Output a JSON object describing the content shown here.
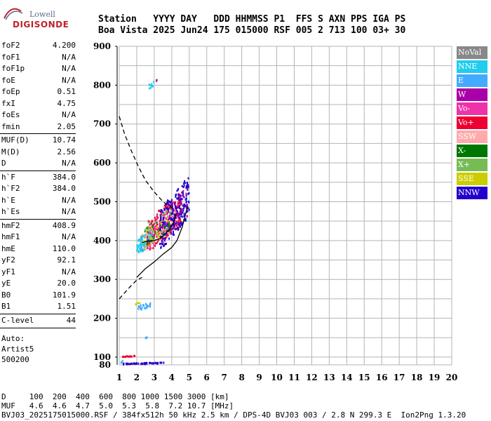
{
  "logo": {
    "top": "Lowell",
    "bottom": "DIGISONDE"
  },
  "header": {
    "line1": "Station   YYYY DAY   DDD HHMMSS P1  FFS S AXN PPS IGA PS",
    "line2": "Boa Vista 2025 Jun24 175 015000 RSF 005 2 713 100 03+ 30"
  },
  "params": [
    {
      "label": "foF2",
      "value": "4.200"
    },
    {
      "label": "foF1",
      "value": "N/A"
    },
    {
      "label": "foF1p",
      "value": "N/A"
    },
    {
      "label": "foE",
      "value": "N/A"
    },
    {
      "label": "foEp",
      "value": "0.51"
    },
    {
      "label": "fxI",
      "value": "4.75"
    },
    {
      "label": "foEs",
      "value": "N/A"
    },
    {
      "label": "fmin",
      "value": "2.05"
    },
    {
      "label": "MUF(D)",
      "value": "10.74"
    },
    {
      "label": "M(D)",
      "value": "2.56"
    },
    {
      "label": "D",
      "value": "N/A"
    },
    {
      "label": "h`F",
      "value": "384.0"
    },
    {
      "label": "h`F2",
      "value": "384.0"
    },
    {
      "label": "h`E",
      "value": "N/A"
    },
    {
      "label": "h`Es",
      "value": "N/A"
    },
    {
      "label": "hmF2",
      "value": "408.9"
    },
    {
      "label": "hmF1",
      "value": "N/A"
    },
    {
      "label": "hmE",
      "value": "110.0"
    },
    {
      "label": "yF2",
      "value": "92.1"
    },
    {
      "label": "yF1",
      "value": "N/A"
    },
    {
      "label": "yE",
      "value": "20.0"
    },
    {
      "label": "B0",
      "value": "101.9"
    },
    {
      "label": "B1",
      "value": "1.51"
    },
    {
      "label": "C-level",
      "value": "44"
    }
  ],
  "auto": {
    "line1": "Auto:",
    "line2": "Artist5",
    "line3": "500200"
  },
  "legend": [
    {
      "label": "NoVal",
      "color": "#888888"
    },
    {
      "label": "NNE",
      "color": "#22ccee"
    },
    {
      "label": "E",
      "color": "#44aaff"
    },
    {
      "label": "W",
      "color": "#aa00aa"
    },
    {
      "label": "Vo-",
      "color": "#ee33aa"
    },
    {
      "label": "Vo+",
      "color": "#ee0033"
    },
    {
      "label": "SSW",
      "color": "#ffaaaa"
    },
    {
      "label": "X-",
      "color": "#007700"
    },
    {
      "label": "X+",
      "color": "#77bb55"
    },
    {
      "label": "SSE",
      "color": "#cccc00"
    },
    {
      "label": "NNW",
      "color": "#2200cc"
    }
  ],
  "footer": {
    "line1": "D     100  200  400  600  800 1000 1500 3000 [km]",
    "line2": "MUF   4.6  4.6  4.7  5.0  5.3  5.8  7.2 10.7 [MHz]",
    "line3": "BVJ03_2025175015000.RSF / 384fx512h 50 kHz 2.5 km / DPS-4D BVJ03 003 / 2.8 N 299.3 E  Ion2Png 1.3.20"
  },
  "chart_data": {
    "type": "scatter",
    "xlim": [
      1,
      20
    ],
    "ylim": [
      80,
      900
    ],
    "xticks": [
      1,
      2,
      3,
      4,
      5,
      6,
      7,
      8,
      9,
      10,
      11,
      12,
      13,
      14,
      15,
      16,
      17,
      18,
      19,
      20
    ],
    "yticks": [
      100,
      200,
      300,
      400,
      500,
      600,
      700,
      800,
      900
    ],
    "profile_solid": [
      [
        2.3,
        395
      ],
      [
        2.6,
        398
      ],
      [
        3.0,
        400
      ],
      [
        3.3,
        405
      ],
      [
        3.6,
        415
      ],
      [
        3.9,
        430
      ],
      [
        4.1,
        445
      ],
      [
        4.2,
        460
      ],
      [
        4.25,
        470
      ]
    ],
    "profile_lower": [
      [
        2.0,
        305
      ],
      [
        2.5,
        328
      ],
      [
        3.0,
        345
      ],
      [
        3.5,
        365
      ],
      [
        4.0,
        382
      ],
      [
        4.3,
        400
      ],
      [
        4.6,
        435
      ],
      [
        4.8,
        470
      ],
      [
        4.9,
        488
      ]
    ],
    "profile_dashed_upper": [
      [
        1.0,
        720
      ],
      [
        1.3,
        675
      ],
      [
        1.7,
        630
      ],
      [
        2.1,
        590
      ],
      [
        2.5,
        555
      ],
      [
        3.0,
        525
      ],
      [
        3.5,
        500
      ],
      [
        4.0,
        485
      ],
      [
        4.3,
        478
      ]
    ],
    "profile_dashed_lower": [
      [
        1.0,
        250
      ],
      [
        1.3,
        265
      ],
      [
        1.7,
        285
      ],
      [
        2.0,
        298
      ],
      [
        2.3,
        305
      ]
    ],
    "clusters": [
      {
        "series": "NNE",
        "x": [
          2.0,
          3.0
        ],
        "y": [
          365,
          430
        ],
        "n": 130
      },
      {
        "series": "E",
        "x": [
          2.2,
          3.2
        ],
        "y": [
          370,
          440
        ],
        "n": 50
      },
      {
        "series": "Vo+",
        "x": [
          2.6,
          4.6
        ],
        "y": [
          375,
          520
        ],
        "n": 200
      },
      {
        "series": "Vo-",
        "x": [
          2.7,
          4.3
        ],
        "y": [
          380,
          500
        ],
        "n": 50
      },
      {
        "series": "SSW",
        "x": [
          2.5,
          4.2
        ],
        "y": [
          380,
          480
        ],
        "n": 60
      },
      {
        "series": "NNW",
        "x": [
          3.3,
          5.0
        ],
        "y": [
          380,
          560
        ],
        "n": 220
      },
      {
        "series": "W",
        "x": [
          3.5,
          4.9
        ],
        "y": [
          400,
          540
        ],
        "n": 50
      },
      {
        "series": "X-",
        "x": [
          2.4,
          4.0
        ],
        "y": [
          390,
          470
        ],
        "n": 30
      },
      {
        "series": "X+",
        "x": [
          2.4,
          4.0
        ],
        "y": [
          390,
          480
        ],
        "n": 30
      },
      {
        "series": "SSE",
        "x": [
          2.3,
          3.5
        ],
        "y": [
          380,
          450
        ],
        "n": 20
      },
      {
        "series": "E",
        "x": [
          2.0,
          2.8
        ],
        "y": [
          220,
          240
        ],
        "n": 25
      },
      {
        "series": "SSE",
        "x": [
          1.8,
          2.2
        ],
        "y": [
          235,
          240
        ],
        "n": 5
      },
      {
        "series": "NNE",
        "x": [
          2.7,
          3.0
        ],
        "y": [
          790,
          810
        ],
        "n": 10
      },
      {
        "series": "W",
        "x": [
          3.1,
          3.2
        ],
        "y": [
          808,
          815
        ],
        "n": 3
      },
      {
        "series": "E",
        "x": [
          2.5,
          2.6
        ],
        "y": [
          148,
          152
        ],
        "n": 4
      },
      {
        "series": "Vo+",
        "x": [
          1.2,
          1.9
        ],
        "y": [
          100,
          103
        ],
        "n": 15
      },
      {
        "series": "NNW",
        "x": [
          1.2,
          3.6
        ],
        "y": [
          81,
          86
        ],
        "n": 45
      },
      {
        "series": "E",
        "x": [
          1.1,
          1.2
        ],
        "y": [
          82,
          92
        ],
        "n": 3
      }
    ]
  }
}
